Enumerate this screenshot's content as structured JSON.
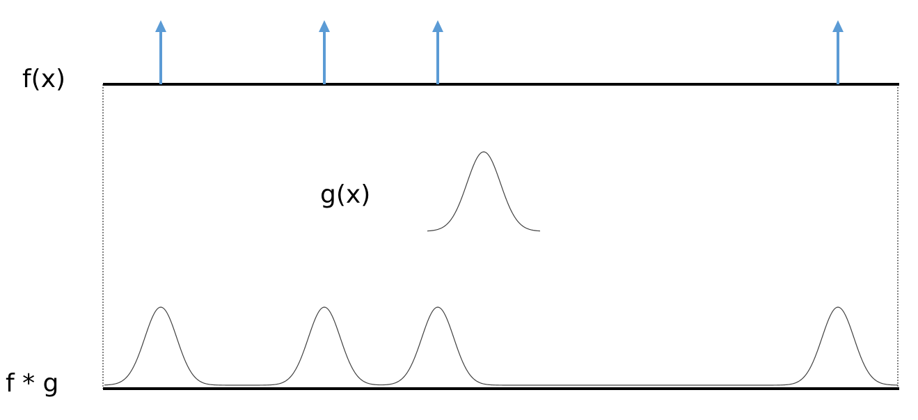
{
  "labels": {
    "f": "f(x)",
    "g": "g(x)",
    "conv": "f * g"
  },
  "colors": {
    "impulse": "#5b9bd5",
    "line": "#000000",
    "curve": "#404040",
    "border": "#000000"
  },
  "icons": {
    "impulse": "up-arrow-icon"
  },
  "impulse_count": 4
}
